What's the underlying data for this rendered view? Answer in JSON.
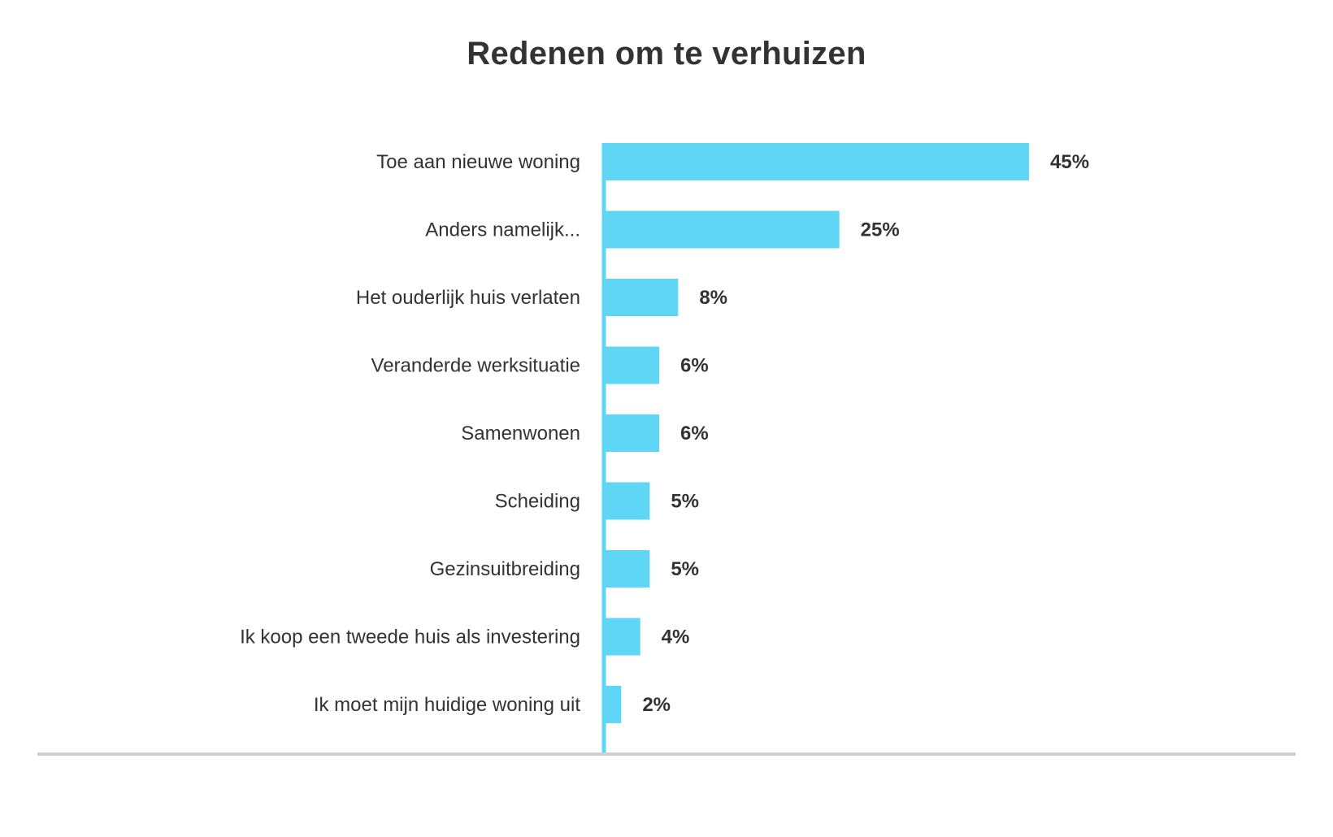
{
  "chart_data": {
    "type": "bar",
    "orientation": "horizontal",
    "title": "Redenen om te verhuizen",
    "categories": [
      "Toe aan nieuwe woning",
      "Anders namelijk...",
      "Het ouderlijk huis verlaten",
      "Veranderde werksituatie",
      "Samenwonen",
      "Scheiding",
      "Gezinsuitbreiding",
      "Ik koop een tweede huis als investering",
      "Ik moet mijn huidige woning uit"
    ],
    "values": [
      45,
      25,
      8,
      6,
      6,
      5,
      5,
      4,
      2
    ],
    "value_labels": [
      "45%",
      "25%",
      "8%",
      "6%",
      "6%",
      "5%",
      "5%",
      "4%",
      "2%"
    ],
    "unit": "%",
    "xlim": [
      0,
      45
    ],
    "grid": false,
    "legend": "none",
    "colors": {
      "bar": "#5fd6f6",
      "axis": "#5fd6f6",
      "baseline": "#cfcfcf",
      "text": "#333333"
    }
  }
}
